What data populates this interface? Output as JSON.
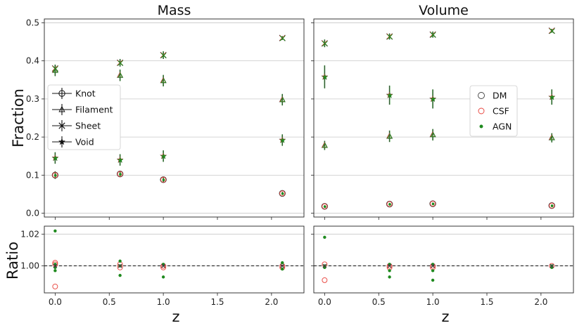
{
  "chart_data": {
    "type": "scatter",
    "xlabel": "z",
    "x_ticks": [
      "0.0",
      "0.5",
      "1.0",
      "1.5",
      "2.0"
    ],
    "xlim": [
      -0.1,
      2.3
    ],
    "colors": {
      "DM": "#404040",
      "CSF": "#e8413a",
      "AGN": "#1f8a1f"
    },
    "panels": [
      {
        "title": "Mass",
        "ylabel": "Fraction",
        "ylim": [
          -0.01,
          0.51
        ],
        "y_ticks": [
          "0.0",
          "0.1",
          "0.2",
          "0.3",
          "0.4",
          "0.5"
        ],
        "legend": {
          "position": "center-left",
          "entries": [
            {
              "label": "Knot",
              "marker": "circle"
            },
            {
              "label": "Filament",
              "marker": "triangle"
            },
            {
              "label": "Sheet",
              "marker": "x"
            },
            {
              "label": "Void",
              "marker": "star"
            }
          ]
        },
        "series": [
          {
            "name": "Knot",
            "marker": "circle",
            "x": [
              0.0,
              0.6,
              1.0,
              2.1
            ],
            "y": [
              0.1,
              0.103,
              0.088,
              0.052
            ],
            "err": [
              0.01,
              0.008,
              0.006,
              0.004
            ]
          },
          {
            "name": "Filament",
            "marker": "triangle",
            "x": [
              0.0,
              0.6,
              1.0,
              2.1
            ],
            "y": [
              0.375,
              0.362,
              0.348,
              0.298
            ],
            "err": [
              0.015,
              0.015,
              0.015,
              0.015
            ]
          },
          {
            "name": "Sheet",
            "marker": "x",
            "x": [
              0.0,
              0.6,
              1.0,
              2.1
            ],
            "y": [
              0.38,
              0.395,
              0.415,
              0.46
            ],
            "err": [
              0.01,
              0.01,
              0.01,
              0.005
            ]
          },
          {
            "name": "Void",
            "marker": "star",
            "x": [
              0.0,
              0.6,
              1.0,
              2.1
            ],
            "y": [
              0.145,
              0.14,
              0.15,
              0.192
            ],
            "err": [
              0.015,
              0.015,
              0.015,
              0.015
            ]
          }
        ],
        "ratio": {
          "ylabel": "Ratio",
          "ylim": [
            0.983,
            1.025
          ],
          "y_ticks": [
            "1.00",
            "1.02"
          ],
          "reference": 1.0,
          "points": [
            {
              "set": "CSF",
              "x": 0.0,
              "y": 0.987
            },
            {
              "set": "CSF",
              "x": 0.0,
              "y": 1.002
            },
            {
              "set": "CSF",
              "x": 0.0,
              "y": 1.001
            },
            {
              "set": "AGN",
              "x": 0.0,
              "y": 1.022
            },
            {
              "set": "AGN",
              "x": 0.0,
              "y": 0.997
            },
            {
              "set": "AGN",
              "x": 0.0,
              "y": 0.999
            },
            {
              "set": "AGN",
              "x": 0.0,
              "y": 1.001
            },
            {
              "set": "CSF",
              "x": 0.6,
              "y": 1.001
            },
            {
              "set": "CSF",
              "x": 0.6,
              "y": 0.999
            },
            {
              "set": "AGN",
              "x": 0.6,
              "y": 1.003
            },
            {
              "set": "AGN",
              "x": 0.6,
              "y": 0.994
            },
            {
              "set": "AGN",
              "x": 0.6,
              "y": 1.0
            },
            {
              "set": "CSF",
              "x": 1.0,
              "y": 0.999
            },
            {
              "set": "CSF",
              "x": 1.0,
              "y": 1.0
            },
            {
              "set": "AGN",
              "x": 1.0,
              "y": 1.001
            },
            {
              "set": "AGN",
              "x": 1.0,
              "y": 0.993
            },
            {
              "set": "CSF",
              "x": 2.1,
              "y": 1.0
            },
            {
              "set": "CSF",
              "x": 2.1,
              "y": 0.999
            },
            {
              "set": "AGN",
              "x": 2.1,
              "y": 1.002
            },
            {
              "set": "AGN",
              "x": 2.1,
              "y": 0.998
            }
          ]
        }
      },
      {
        "title": "Volume",
        "ylabel": "",
        "ylim": [
          -0.01,
          0.51
        ],
        "y_ticks": [],
        "legend": {
          "position": "center-right",
          "entries": [
            {
              "label": "DM",
              "marker": "open-circle-dm"
            },
            {
              "label": "CSF",
              "marker": "open-circle-csf"
            },
            {
              "label": "AGN",
              "marker": "dot-agn"
            }
          ]
        },
        "series": [
          {
            "name": "Knot",
            "marker": "circle",
            "x": [
              0.0,
              0.6,
              1.0,
              2.1
            ],
            "y": [
              0.018,
              0.024,
              0.025,
              0.02
            ],
            "err": [
              0.003,
              0.003,
              0.003,
              0.003
            ]
          },
          {
            "name": "Filament",
            "marker": "triangle",
            "x": [
              0.0,
              0.6,
              1.0,
              2.1
            ],
            "y": [
              0.178,
              0.202,
              0.206,
              0.198
            ],
            "err": [
              0.012,
              0.015,
              0.015,
              0.012
            ]
          },
          {
            "name": "Sheet",
            "marker": "x",
            "x": [
              0.0,
              0.6,
              1.0,
              2.1
            ],
            "y": [
              0.446,
              0.464,
              0.469,
              0.479
            ],
            "err": [
              0.01,
              0.008,
              0.008,
              0.005
            ]
          },
          {
            "name": "Void",
            "marker": "star",
            "x": [
              0.0,
              0.6,
              1.0,
              2.1
            ],
            "y": [
              0.358,
              0.31,
              0.3,
              0.305
            ],
            "err": [
              0.03,
              0.025,
              0.025,
              0.02
            ]
          }
        ],
        "ratio": {
          "ylabel": "",
          "ylim": [
            0.983,
            1.025
          ],
          "y_ticks": [],
          "reference": 1.0,
          "points": [
            {
              "set": "CSF",
              "x": 0.0,
              "y": 0.991
            },
            {
              "set": "CSF",
              "x": 0.0,
              "y": 1.001
            },
            {
              "set": "AGN",
              "x": 0.0,
              "y": 1.018
            },
            {
              "set": "AGN",
              "x": 0.0,
              "y": 0.999
            },
            {
              "set": "AGN",
              "x": 0.0,
              "y": 1.0
            },
            {
              "set": "CSF",
              "x": 0.6,
              "y": 0.999
            },
            {
              "set": "CSF",
              "x": 0.6,
              "y": 1.0
            },
            {
              "set": "AGN",
              "x": 0.6,
              "y": 1.001
            },
            {
              "set": "AGN",
              "x": 0.6,
              "y": 0.993
            },
            {
              "set": "AGN",
              "x": 0.6,
              "y": 0.997
            },
            {
              "set": "CSF",
              "x": 1.0,
              "y": 0.999
            },
            {
              "set": "CSF",
              "x": 1.0,
              "y": 1.0
            },
            {
              "set": "AGN",
              "x": 1.0,
              "y": 1.001
            },
            {
              "set": "AGN",
              "x": 1.0,
              "y": 0.991
            },
            {
              "set": "AGN",
              "x": 1.0,
              "y": 0.997
            },
            {
              "set": "CSF",
              "x": 2.1,
              "y": 1.0
            },
            {
              "set": "AGN",
              "x": 2.1,
              "y": 0.999
            },
            {
              "set": "AGN",
              "x": 2.1,
              "y": 1.0
            }
          ]
        }
      }
    ]
  }
}
